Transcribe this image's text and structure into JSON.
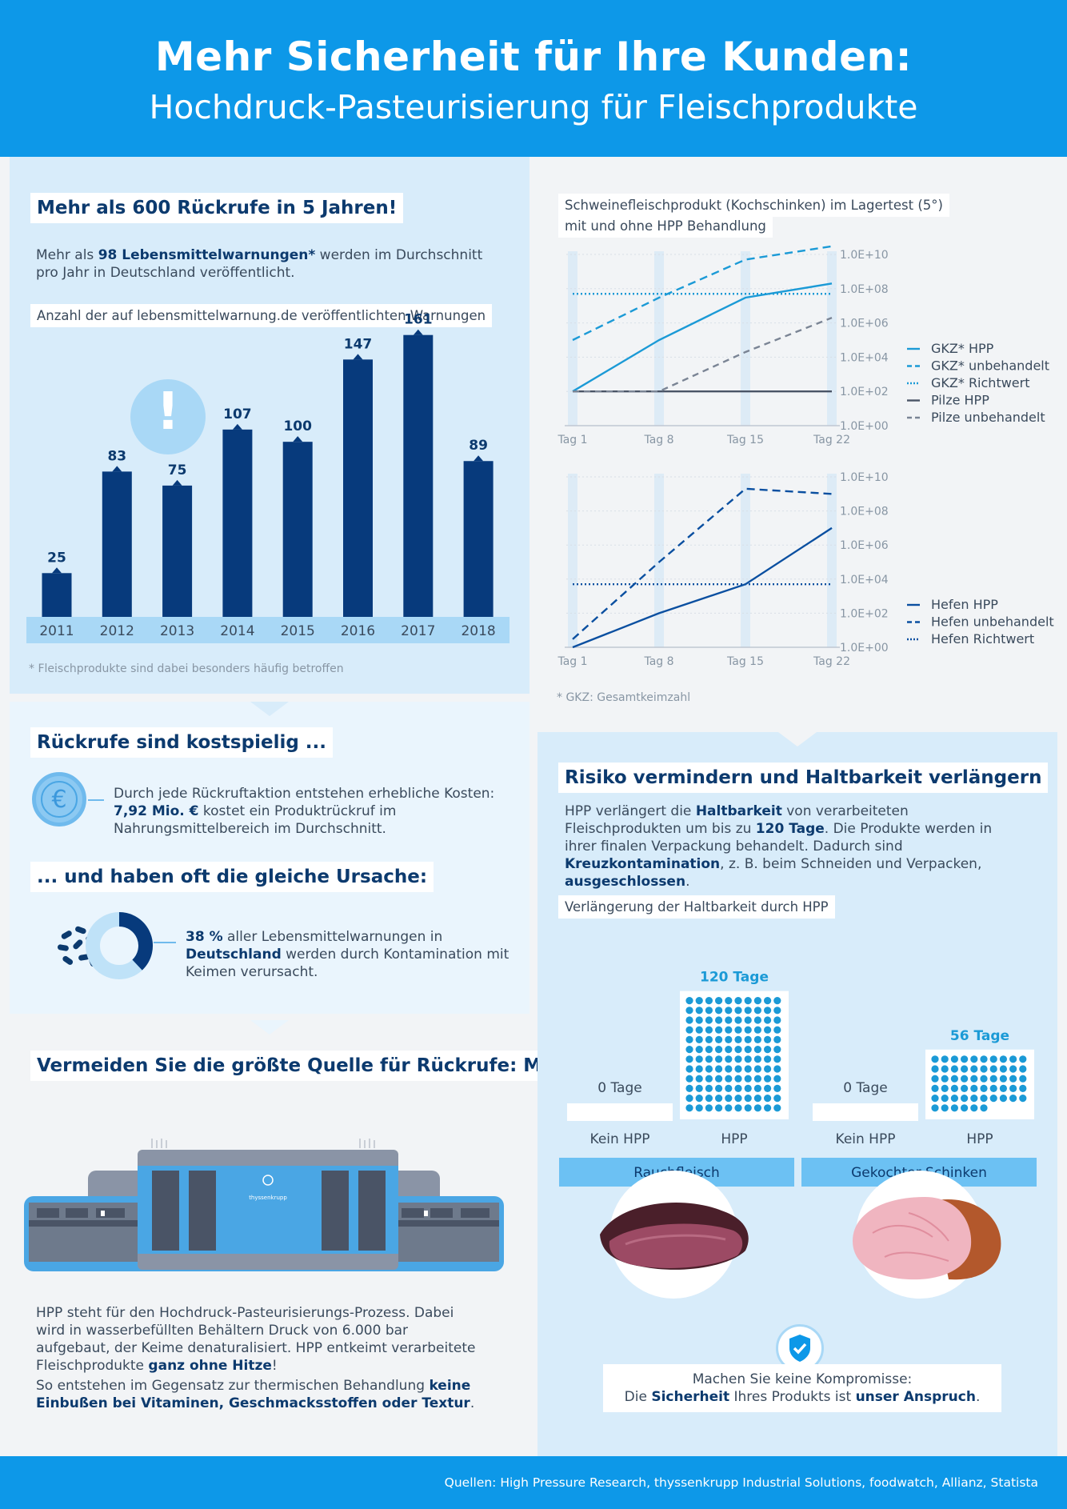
{
  "header": {
    "title": "Mehr Sicherheit für Ihre Kunden:",
    "subtitle": "Hochdruck-Pasteurisierung für Fleischprodukte"
  },
  "recalls": {
    "heading": "Mehr als 600 Rückrufe in 5 Jahren!",
    "intro_a": "Mehr als ",
    "intro_b": "98 Lebensmittelwarnungen*",
    "intro_c": " werden im Durchschnitt pro Jahr in Deutschland veröffentlicht.",
    "chart_title": "Anzahl der auf lebensmittelwarnung.de veröffentlichten Warnungen",
    "footnote": "* Fleischprodukte sind dabei besonders häufig betroffen",
    "alert_icon": "exclamation-icon"
  },
  "costs": {
    "heading": "Rückrufe sind kostspielig ...",
    "text_a": "Durch jede Rückruftaktion entstehen erhebliche Kosten: ",
    "text_b": "7,92 Mio. €",
    "text_c": " kostet ein Produktrückruf im Nahrungsmittelbereich im Durchschnitt.",
    "icon": "euro-coin-icon"
  },
  "cause": {
    "heading": "... und haben oft die gleiche Ursache:",
    "percent": "38 %",
    "text_a": " aller Lebensmittelwarnungen in ",
    "text_b": "Deutschland",
    "text_c": " werden durch Kontamination mit Keimen verursacht.",
    "share": 0.38,
    "icon": "bacteria-icon"
  },
  "hpp": {
    "heading": "Vermeiden Sie die größte Quelle für Rückrufe: Mit HPP",
    "machine_brand": "thyssenkrupp",
    "p1_a": "HPP steht für den Hochdruck-Pasteurisierungs-Prozess. Dabei wird in wasserbefüllten Behältern Druck von 6.000 bar aufgebaut, der Keime denaturalisiert. HPP entkeimt verarbeitete Fleischprodukte ",
    "p1_b": "ganz ohne Hitze",
    "p1_c": "!",
    "p2_a": "So entstehen im Gegensatz zur thermischen Behandlung ",
    "p2_b": "keine Einbußen bei Vitaminen, Geschmacksstoffen oder Textur",
    "p2_c": "."
  },
  "storage": {
    "title_line1": "Schweinefleischprodukt (Kochschinken) im Lagertest (5°)",
    "title_line2": "mit und ohne HPP Behandlung",
    "footnote": "* GKZ: Gesamtkeimzahl"
  },
  "risk": {
    "heading": "Risiko vermindern und Haltbarkeit verlängern",
    "t1": "HPP verlängert die ",
    "t2": "Haltbarkeit",
    "t3": " von verarbeiteten Fleischprodukten um bis zu ",
    "t4": "120 Tage",
    "t5": ". Die Produkte werden in ihrer finalen Verpackung behandelt. Dadurch sind ",
    "t6": "Kreuzkontamination",
    "t7": ", z. B. beim Schneiden und Verpacken, ",
    "t8": "ausgeschlossen",
    "t9": ".",
    "chart_title": "Verlängerung der Haltbarkeit durch HPP",
    "cat_no": "Kein HPP",
    "cat_yes": "HPP",
    "product1": "Rauchfleisch",
    "product2": "Gekochter Schinken",
    "zero1": "0 Tage",
    "zero2": "0 Tage",
    "val1": "120 Tage",
    "val2": "56 Tage",
    "badge_icon": "shield-check-icon",
    "closing1": "Machen Sie keine Kompromisse:",
    "closing2_a": "Die ",
    "closing2_b": "Sicherheit",
    "closing2_c": " Ihres Produkts ist ",
    "closing2_d": "unser Anspruch",
    "closing2_e": "."
  },
  "footer": {
    "sources": "Quellen: High Pressure Research, thyssenkrupp Industrial Solutions, foodwatch, Allianz, Statista"
  },
  "colors": {
    "primary": "#0d98e8",
    "dark_navy": "#0c3a6e",
    "bar": "#073a7c",
    "light_panel": "#d8ecfa",
    "lighter_panel": "#eaf5fd"
  },
  "chart_data": [
    {
      "type": "bar",
      "title": "Anzahl der auf lebensmittelwarnung.de veröffentlichten Warnungen",
      "categories": [
        "2011",
        "2012",
        "2013",
        "2014",
        "2015",
        "2016",
        "2017",
        "2018"
      ],
      "values": [
        25,
        83,
        75,
        107,
        100,
        147,
        161,
        89
      ],
      "labels": [
        "25",
        "83",
        "75",
        "107",
        "100",
        "147",
        "161",
        "89"
      ],
      "ylim": [
        0,
        170
      ]
    },
    {
      "type": "line",
      "title": "Schweinefleischprodukt (Kochschinken) im Lagertest (5°) mit und ohne HPP Behandlung",
      "x": [
        "Tag 1",
        "Tag 8",
        "Tag 15",
        "Tag 22"
      ],
      "y_scale": "log",
      "ylim": [
        1,
        10000000000
      ],
      "y_ticks": [
        "1.0E+00",
        "1.0E+02",
        "1.0E+04",
        "1.0E+06",
        "1.0E+08",
        "1.0E+10"
      ],
      "series": [
        {
          "name": "GKZ* HPP",
          "values": [
            100,
            100000,
            30000000,
            200000000
          ]
        },
        {
          "name": "GKZ* unbehandelt",
          "values": [
            100000,
            30000000,
            5000000000,
            30000000000
          ]
        },
        {
          "name": "GKZ* Richtwert",
          "values": [
            50000000,
            50000000,
            50000000,
            50000000
          ]
        },
        {
          "name": "Pilze HPP",
          "values": [
            100,
            100,
            100,
            100
          ]
        },
        {
          "name": "Pilze unbehandelt",
          "values": [
            100,
            100,
            20000,
            2000000
          ]
        }
      ]
    },
    {
      "type": "line",
      "x": [
        "Tag 1",
        "Tag 8",
        "Tag 15",
        "Tag 22"
      ],
      "y_scale": "log",
      "ylim": [
        1,
        10000000000
      ],
      "y_ticks": [
        "1.0E+00",
        "1.0E+02",
        "1.0E+04",
        "1.0E+06",
        "1.0E+08",
        "1.0E+10"
      ],
      "series": [
        {
          "name": "Hefen HPP",
          "values": [
            1,
            100,
            5000,
            10000000
          ]
        },
        {
          "name": "Hefen unbehandelt",
          "values": [
            3,
            100000,
            2000000000,
            1000000000
          ]
        },
        {
          "name": "Hefen Richtwert",
          "values": [
            5000,
            5000,
            5000,
            5000
          ]
        }
      ]
    },
    {
      "type": "bar",
      "title": "Verlängerung der Haltbarkeit durch HPP",
      "categories": [
        "Rauchfleisch",
        "Gekochter Schinken"
      ],
      "series": [
        {
          "name": "Kein HPP",
          "values": [
            0,
            0
          ]
        },
        {
          "name": "HPP",
          "values": [
            120,
            56
          ]
        }
      ],
      "unit": "Tage"
    }
  ]
}
